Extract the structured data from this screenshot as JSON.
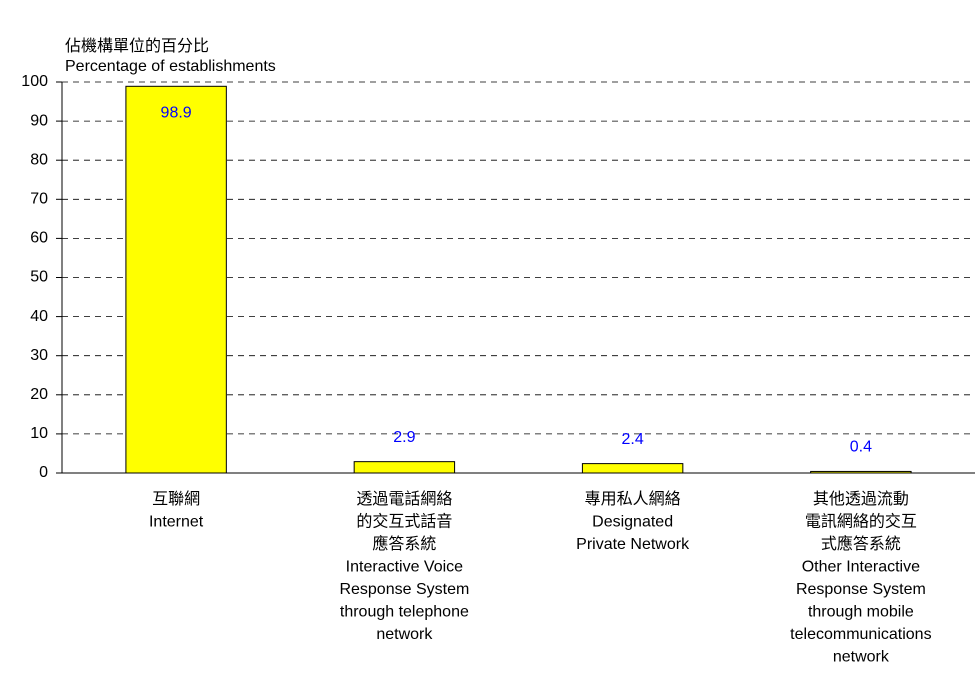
{
  "chart_data": {
    "type": "bar",
    "ylabel": [
      "佔機構單位的百分比",
      "Percentage of establishments"
    ],
    "categories": [
      [
        "互聯網",
        "Internet"
      ],
      [
        "透過電話網絡",
        "的交互式話音",
        "應答系統",
        "Interactive Voice",
        "Response System",
        "through telephone",
        "network"
      ],
      [
        "專用私人網絡",
        "Designated",
        "Private Network"
      ],
      [
        "其他透過流動",
        "電訊網絡的交互",
        "式應答系統",
        "Other Interactive",
        "Response System",
        "through mobile",
        "telecommunications",
        "network"
      ]
    ],
    "values": [
      98.9,
      2.9,
      2.4,
      0.4
    ],
    "color": "#ffff00",
    "label_color": "#0000ff",
    "ylim": [
      0,
      100
    ],
    "yticks": [
      0,
      10,
      20,
      30,
      40,
      50,
      60,
      70,
      80,
      90,
      100
    ],
    "grid": true
  }
}
